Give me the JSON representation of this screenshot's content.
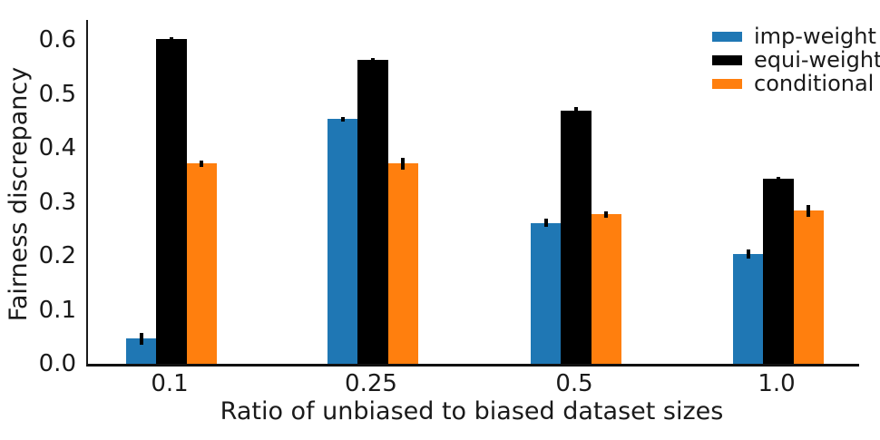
{
  "chart_data": {
    "type": "bar",
    "title": "",
    "xlabel": "Ratio of unbiased to biased dataset sizes",
    "ylabel": "Fairness discrepancy",
    "categories": [
      "0.1",
      "0.25",
      "0.5",
      "1.0"
    ],
    "series": [
      {
        "name": "imp-weight",
        "color": "#1f77b4",
        "values": [
          0.047,
          0.453,
          0.261,
          0.203
        ],
        "errors": [
          0.011,
          0.004,
          0.008,
          0.008
        ]
      },
      {
        "name": "equi-weight",
        "color": "#000000",
        "values": [
          0.601,
          0.563,
          0.469,
          0.343
        ],
        "errors": [
          0.004,
          0.004,
          0.006,
          0.004
        ]
      },
      {
        "name": "conditional",
        "color": "#ff7f0e",
        "values": [
          0.371,
          0.371,
          0.277,
          0.284
        ],
        "errors": [
          0.006,
          0.011,
          0.006,
          0.011
        ]
      }
    ],
    "yticks": [
      "0.0",
      "0.1",
      "0.2",
      "0.3",
      "0.4",
      "0.5",
      "0.6"
    ],
    "ylim": [
      0.0,
      0.637
    ],
    "grid": false,
    "legend_position": "upper right",
    "error_bars": true
  }
}
